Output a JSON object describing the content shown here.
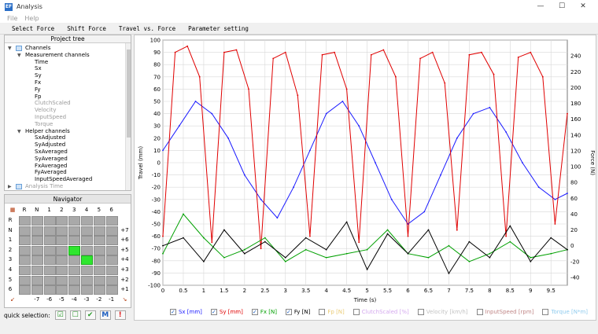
{
  "window": {
    "title": "Analysis",
    "icon_text": "EF",
    "controls": [
      "—",
      "☐",
      "✕"
    ]
  },
  "menu": [
    "File",
    "Help"
  ],
  "toolbar": [
    "Select Force",
    "Shift Force",
    "Travel vs. Force",
    "Parameter setting"
  ],
  "tree": {
    "header": "Project tree",
    "items": [
      {
        "label": "Channels",
        "level": 0,
        "caret": "▼",
        "folder": true,
        "dim": false
      },
      {
        "label": "Measurement channels",
        "level": 1,
        "caret": "▼",
        "folder": false,
        "dim": false
      },
      {
        "label": "Time",
        "level": 2,
        "dim": false
      },
      {
        "label": "Sx",
        "level": 2,
        "dim": false
      },
      {
        "label": "Sy",
        "level": 2,
        "dim": false
      },
      {
        "label": "Fx",
        "level": 2,
        "dim": false
      },
      {
        "label": "Fy",
        "level": 2,
        "dim": false
      },
      {
        "label": "Fp",
        "level": 2,
        "dim": false
      },
      {
        "label": "ClutchScaled",
        "level": 2,
        "dim": true
      },
      {
        "label": "Velocity",
        "level": 2,
        "dim": true
      },
      {
        "label": "InputSpeed",
        "level": 2,
        "dim": true
      },
      {
        "label": "Torque",
        "level": 2,
        "dim": true
      },
      {
        "label": "Helper channels",
        "level": 1,
        "caret": "▼",
        "folder": false,
        "dim": false
      },
      {
        "label": "SxAdjusted",
        "level": 2,
        "dim": false
      },
      {
        "label": "SyAdjusted",
        "level": 2,
        "dim": false
      },
      {
        "label": "SxAveraged",
        "level": 2,
        "dim": false
      },
      {
        "label": "SyAveraged",
        "level": 2,
        "dim": false
      },
      {
        "label": "FxAveraged",
        "level": 2,
        "dim": false
      },
      {
        "label": "FyAveraged",
        "level": 2,
        "dim": false
      },
      {
        "label": "InputSpeedAveraged",
        "level": 2,
        "dim": false
      },
      {
        "label": "Analysis Time",
        "level": 0,
        "caret": "▶",
        "folder": true,
        "dim": true
      }
    ]
  },
  "navigator": {
    "header": "Navigator",
    "col_labels": [
      "R",
      "N",
      "1",
      "2",
      "3",
      "4",
      "5",
      "6"
    ],
    "row_labels": [
      "R",
      "N",
      "1",
      "2",
      "3",
      "4",
      "5",
      "6"
    ],
    "right_labels": [
      "",
      "+7",
      "+6",
      "+5",
      "+4",
      "+3",
      "+2",
      "+1"
    ],
    "bottom_labels": [
      "-7",
      "-6",
      "-5",
      "-4",
      "-3",
      "-2",
      "-1"
    ],
    "active_cells": [
      [
        3,
        4
      ],
      [
        4,
        5
      ]
    ]
  },
  "quick_selection": {
    "label": "quick selection:",
    "buttons": [
      "☑",
      "☐",
      "✔",
      "M",
      "!"
    ]
  },
  "legend": [
    {
      "label": "Sx [mm]",
      "checked": true,
      "color": "#1a1aff"
    },
    {
      "label": "Sy [mm]",
      "checked": true,
      "color": "#e00000"
    },
    {
      "label": "Fx [N]",
      "checked": true,
      "color": "#00a000"
    },
    {
      "label": "Fy [N]",
      "checked": true,
      "color": "#000000"
    },
    {
      "label": "Fp [N]",
      "checked": false,
      "color": "#d9a000"
    },
    {
      "label": "ClutchScaled [%]",
      "checked": false,
      "color": "#b060e0"
    },
    {
      "label": "Velocity [km/h]",
      "checked": false,
      "color": "#909090"
    },
    {
      "label": "InputSpeed [rpm]",
      "checked": false,
      "color": "#8b2020"
    },
    {
      "label": "Torque [N*m]",
      "checked": false,
      "color": "#30a0e0"
    }
  ],
  "chart_data": {
    "type": "line",
    "xlabel": "Time (s)",
    "ylabel": "Travel (mm)",
    "y2label": "Force (N)",
    "xlim": [
      0,
      9.9
    ],
    "ylim": [
      -100,
      100
    ],
    "y2lim": [
      -50,
      260
    ],
    "x_ticks": [
      "0",
      "0.5",
      "1",
      "1.5",
      "2",
      "2.5",
      "3",
      "3.5",
      "4",
      "4.5",
      "5",
      "5.5",
      "6",
      "6.5",
      "7",
      "7.5",
      "8",
      "8.5",
      "9",
      "9.5"
    ],
    "y_ticks": [
      "100",
      "90",
      "80",
      "70",
      "60",
      "50",
      "40",
      "30",
      "20",
      "10",
      "0",
      "-10",
      "-20",
      "-30",
      "-40",
      "-50",
      "-60",
      "-70",
      "-80",
      "-90",
      "-100"
    ],
    "y2_ticks": [
      "240",
      "220",
      "200",
      "180",
      "160",
      "140",
      "120",
      "100",
      "80",
      "60",
      "40",
      "20",
      "0",
      "-20",
      "-40"
    ],
    "grid": true,
    "series": [
      {
        "name": "Sx [mm]",
        "color": "#1a1aff",
        "axis": "left",
        "x": [
          0,
          0.4,
          0.8,
          1.2,
          1.6,
          2.0,
          2.4,
          2.8,
          3.2,
          3.6,
          4.0,
          4.4,
          4.8,
          5.2,
          5.6,
          6.0,
          6.4,
          6.8,
          7.2,
          7.6,
          8.0,
          8.4,
          8.8,
          9.2,
          9.6,
          9.9
        ],
        "y": [
          10,
          30,
          50,
          40,
          20,
          -10,
          -30,
          -45,
          -20,
          10,
          40,
          50,
          30,
          0,
          -30,
          -50,
          -40,
          -10,
          20,
          40,
          45,
          25,
          0,
          -20,
          -30,
          -25
        ]
      },
      {
        "name": "Sy [mm]",
        "color": "#e00000",
        "axis": "left",
        "x": [
          0,
          0.3,
          0.6,
          0.9,
          1.2,
          1.5,
          1.8,
          2.1,
          2.4,
          2.7,
          3.0,
          3.3,
          3.6,
          3.9,
          4.2,
          4.5,
          4.8,
          5.1,
          5.4,
          5.7,
          6.0,
          6.3,
          6.6,
          6.9,
          7.2,
          7.5,
          7.8,
          8.1,
          8.4,
          8.7,
          9.0,
          9.3,
          9.6,
          9.9
        ],
        "y": [
          -60,
          90,
          95,
          70,
          -65,
          90,
          92,
          60,
          -70,
          85,
          90,
          55,
          -60,
          88,
          90,
          60,
          -65,
          88,
          92,
          70,
          -60,
          85,
          90,
          65,
          -55,
          88,
          90,
          72,
          -60,
          86,
          90,
          70,
          -50,
          40
        ]
      },
      {
        "name": "Fx [N]",
        "color": "#00a000",
        "axis": "right",
        "x": [
          0,
          0.5,
          1,
          1.5,
          2,
          2.5,
          3,
          3.5,
          4,
          4.5,
          5,
          5.5,
          6,
          6.5,
          7,
          7.5,
          8,
          8.5,
          9,
          9.5,
          9.9
        ],
        "y": [
          -10,
          40,
          10,
          -15,
          -5,
          10,
          -20,
          -5,
          -15,
          -10,
          -5,
          20,
          -10,
          -15,
          0,
          -20,
          -10,
          5,
          -15,
          -10,
          -5
        ]
      },
      {
        "name": "Fy [N]",
        "color": "#000000",
        "axis": "right",
        "x": [
          0,
          0.5,
          1,
          1.5,
          2,
          2.5,
          3,
          3.5,
          4,
          4.5,
          5,
          5.5,
          6,
          6.5,
          7,
          7.5,
          8,
          8.5,
          9,
          9.5,
          9.9
        ],
        "y": [
          0,
          10,
          -20,
          20,
          -10,
          5,
          -15,
          10,
          -5,
          30,
          -30,
          15,
          -10,
          20,
          -35,
          5,
          -15,
          25,
          -20,
          10,
          -5
        ]
      }
    ]
  }
}
